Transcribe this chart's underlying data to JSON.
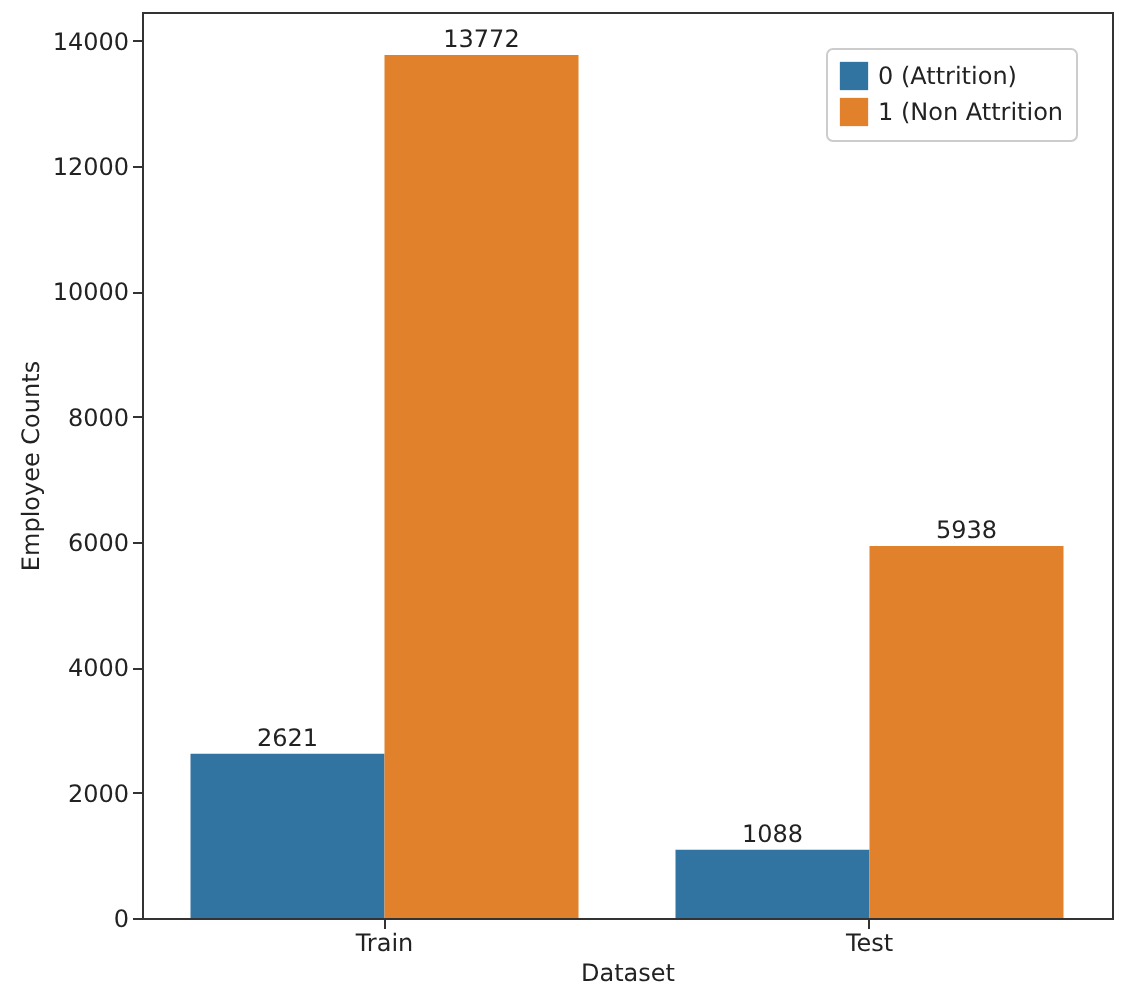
{
  "chart_data": {
    "type": "bar",
    "xlabel": "Dataset",
    "ylabel": "Employee Counts",
    "categories": [
      "Train",
      "Test"
    ],
    "series": [
      {
        "name": "0 (Attrition)",
        "color": "#3274a1",
        "values": [
          2621,
          1088
        ]
      },
      {
        "name": "1 (Non Attrition",
        "color": "#e1812c",
        "values": [
          13772,
          5938
        ]
      }
    ],
    "ylim": [
      0,
      14460
    ],
    "yticks": [
      0,
      2000,
      4000,
      6000,
      8000,
      10000,
      12000,
      14000
    ],
    "data_labels": true,
    "legend": "top right",
    "grid": false
  }
}
